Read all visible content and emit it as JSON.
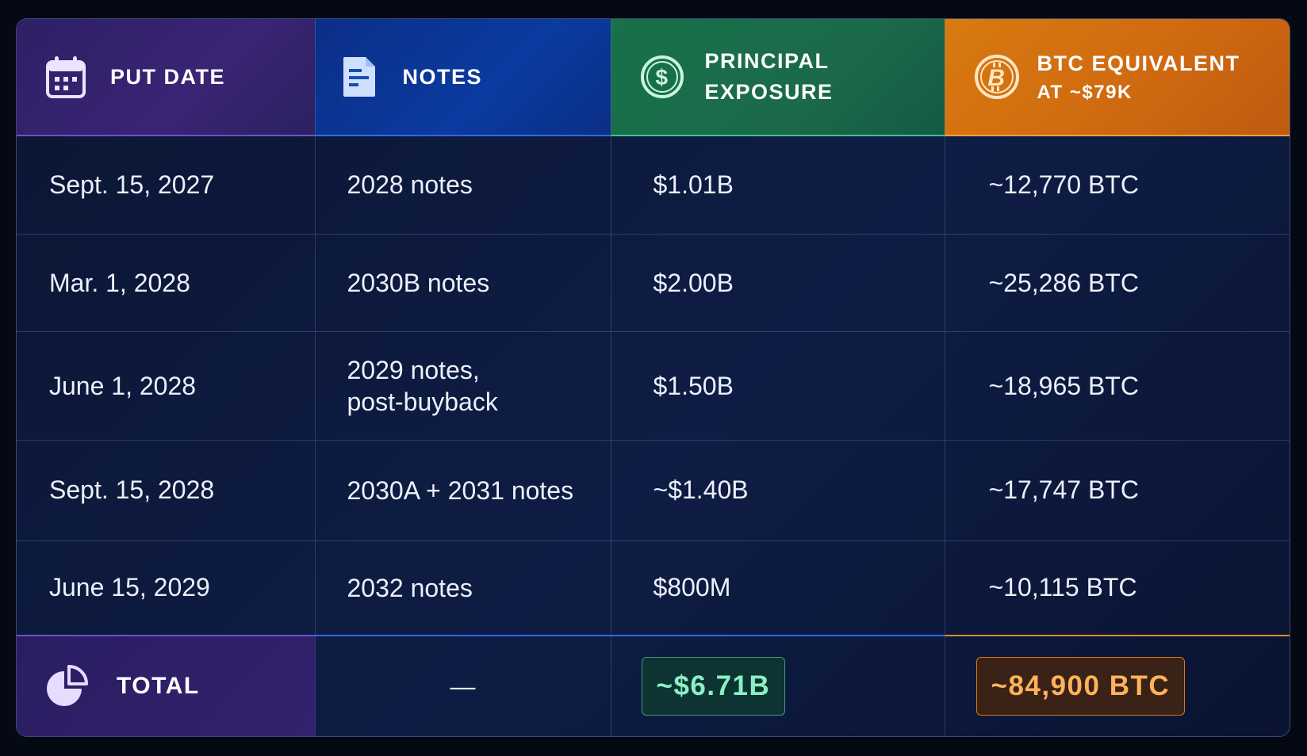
{
  "headers": {
    "put_date": "PUT DATE",
    "notes": "NOTES",
    "principal_line1": "PRINCIPAL",
    "principal_line2": "EXPOSURE",
    "btc_line1": "BTC EQUIVALENT",
    "btc_line2": "AT ~$79K"
  },
  "icons": {
    "put_date": "calendar-icon",
    "notes": "document-icon",
    "principal": "dollar-circle-icon",
    "btc": "bitcoin-icon",
    "total": "pie-chart-icon"
  },
  "rows": [
    {
      "date": "Sept. 15, 2027",
      "notes_line1": "2028 notes",
      "notes_line2": "",
      "principal": "$1.01B",
      "btc": "~12,770 BTC"
    },
    {
      "date": "Mar. 1, 2028",
      "notes_line1": "2030B notes",
      "notes_line2": "",
      "principal": "$2.00B",
      "btc": "~25,286 BTC"
    },
    {
      "date": "June 1, 2028",
      "notes_line1": "2029 notes,",
      "notes_line2": "post-buyback",
      "principal": "$1.50B",
      "btc": "~18,965 BTC"
    },
    {
      "date": "Sept. 15, 2028",
      "notes_line1": "2030A + 2031 notes",
      "notes_line2": "",
      "principal": "~$1.40B",
      "btc": "~17,747 BTC"
    },
    {
      "date": "June 15, 2029",
      "notes_line1": "2032 notes",
      "notes_line2": "",
      "principal": "$800M",
      "btc": "~10,115 BTC"
    }
  ],
  "total": {
    "label": "TOTAL",
    "notes": "—",
    "principal": "~$6.71B",
    "btc": "~84,900 BTC"
  },
  "colors": {
    "background": "#050914",
    "date_header": "#3a2474",
    "notes_header": "#0b3aa0",
    "principal_header": "#1b6a4a",
    "btc_header": "#d06a10",
    "total_principal_text": "#8af0c4",
    "total_btc_text": "#ffb25a"
  }
}
